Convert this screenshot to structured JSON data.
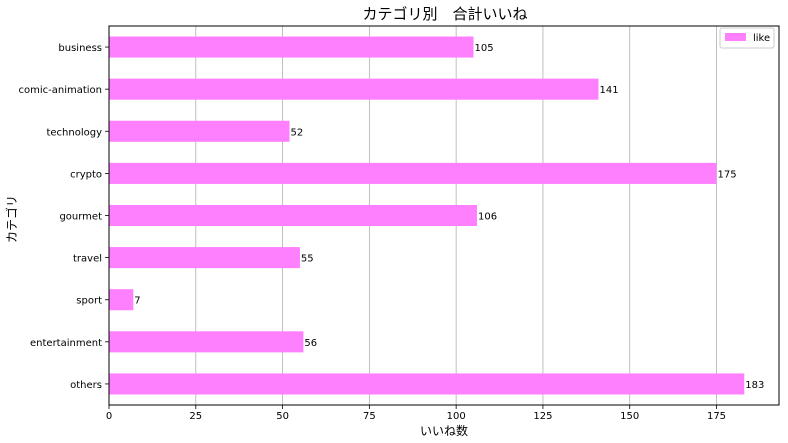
{
  "chart_data": {
    "type": "bar",
    "orientation": "horizontal",
    "title": "カテゴリ別　合計いいね",
    "xlabel": "いいね数",
    "ylabel": "カテゴリ",
    "categories": [
      "business",
      "comic-animation",
      "technology",
      "crypto",
      "gourmet",
      "travel",
      "sport",
      "entertainment",
      "others"
    ],
    "series": [
      {
        "name": "like",
        "values": [
          105,
          141,
          52,
          175,
          106,
          55,
          7,
          56,
          183
        ],
        "color": "#ff80ff"
      }
    ],
    "xlim": [
      0,
      193
    ],
    "xticks": [
      0,
      25,
      50,
      75,
      100,
      125,
      150,
      175
    ],
    "grid": "x",
    "legend": "top-right",
    "data_labels": true
  }
}
